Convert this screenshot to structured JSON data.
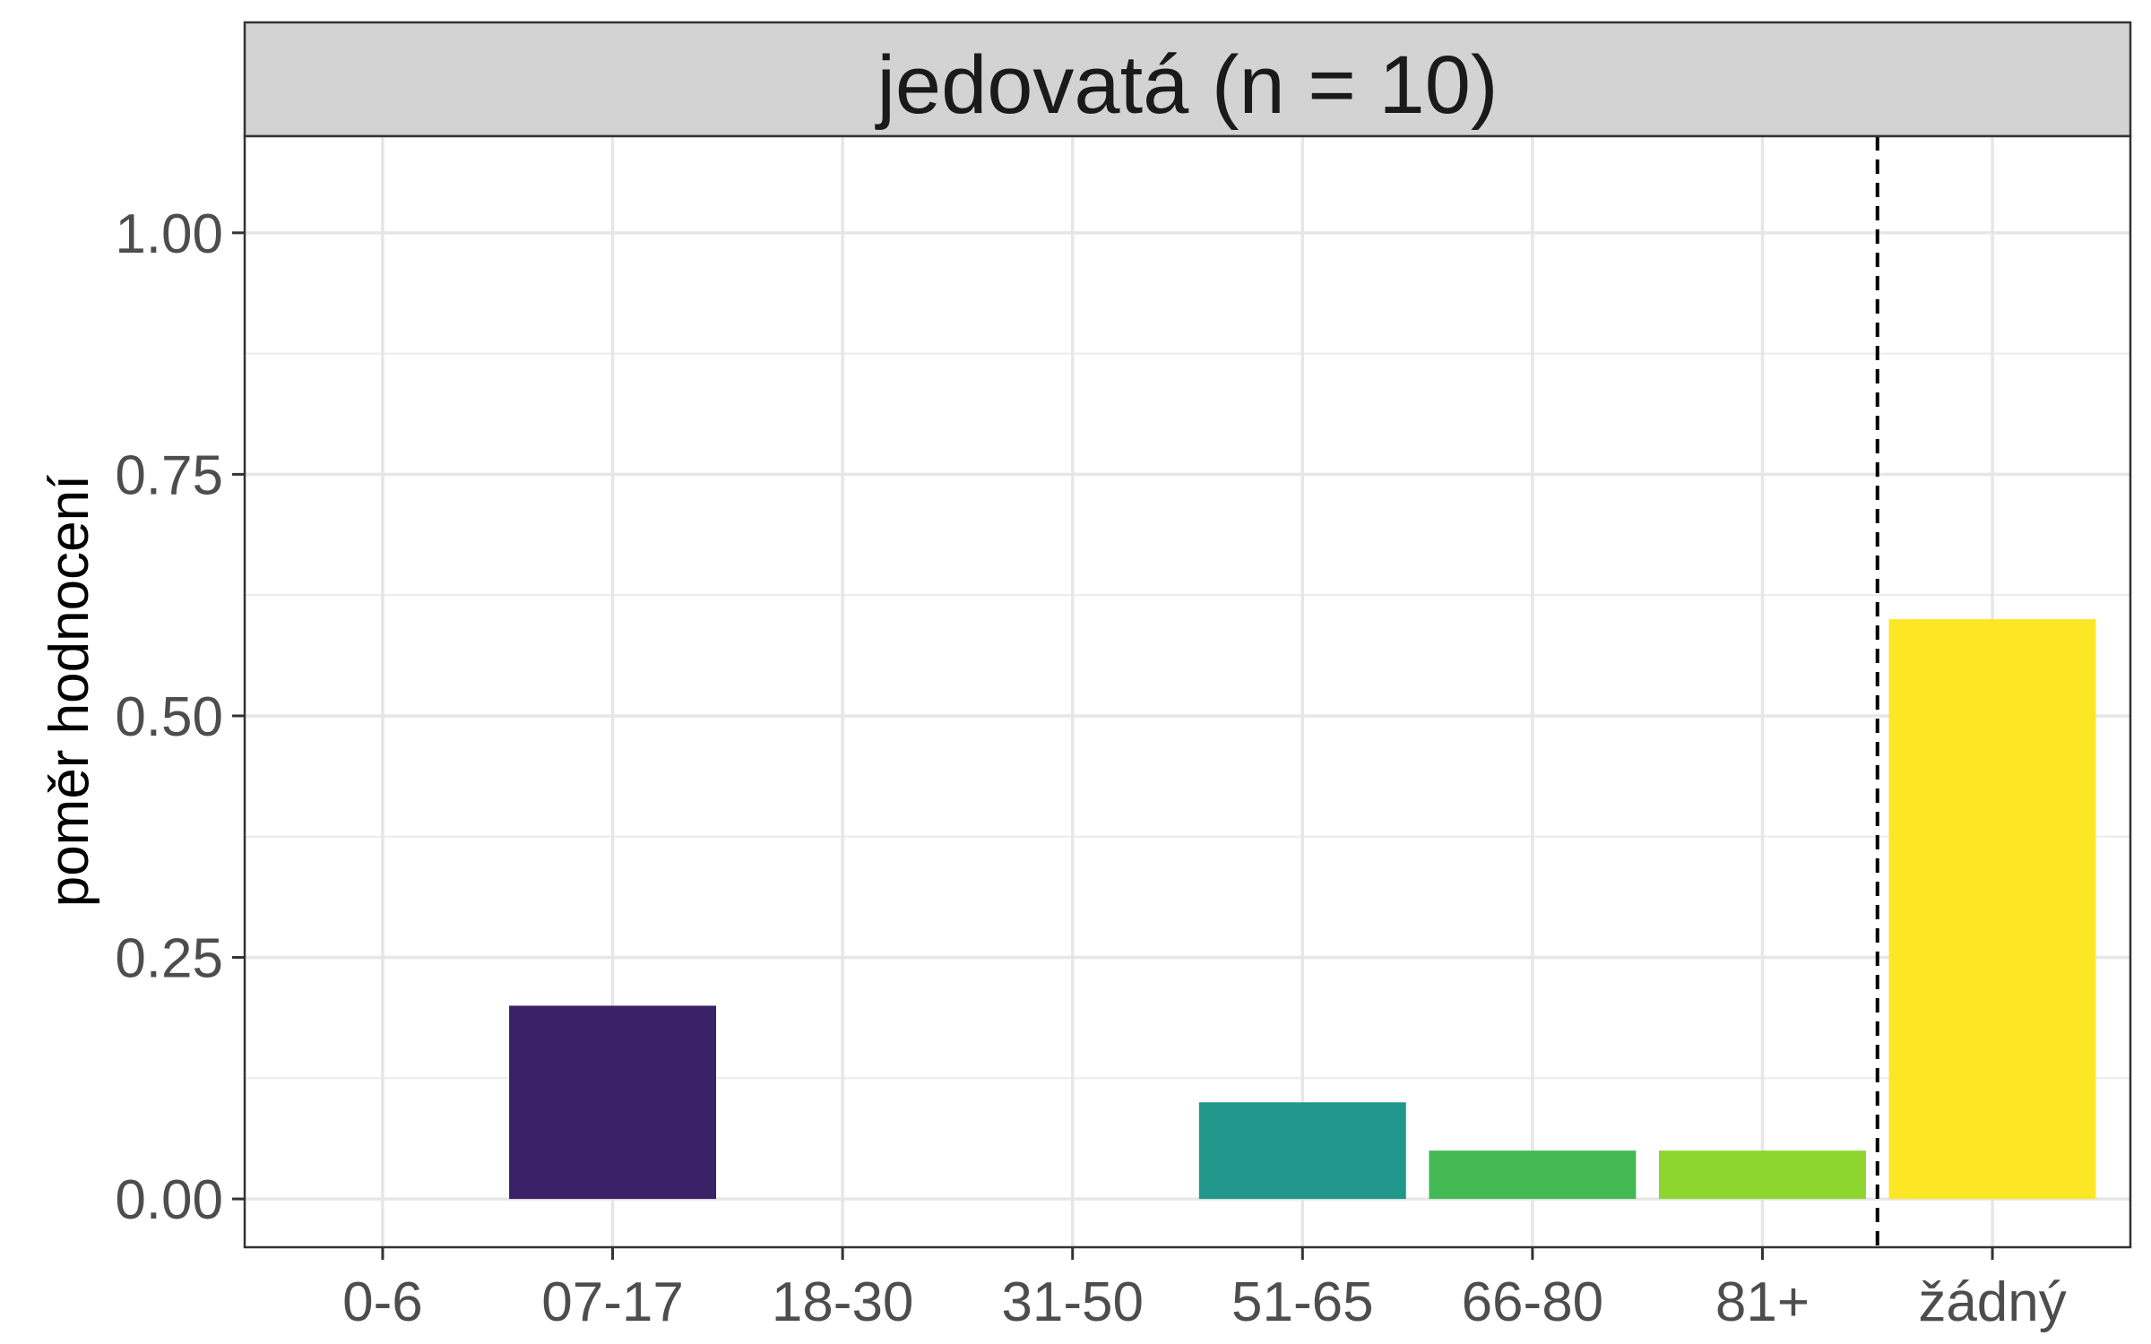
{
  "chart_data": {
    "type": "bar",
    "facet_title": "jedovatá (n = 10)",
    "xlabel": "",
    "ylabel": "poměr hodnocení",
    "categories": [
      "0-6",
      "07-17",
      "18-30",
      "31-50",
      "51-65",
      "66-80",
      "81+",
      "žádný"
    ],
    "values": [
      0,
      0.2,
      0,
      0,
      0.1,
      0.05,
      0.05,
      0.6
    ],
    "colors": [
      "#440154",
      "#3a2168",
      "#31688e",
      "#2a788e",
      "#21968a",
      "#43b954",
      "#8fd530",
      "#fde725"
    ],
    "ylim": [
      -0.05,
      1.1
    ],
    "yticks": [
      "0.00",
      "0.25",
      "0.50",
      "0.75",
      "1.00"
    ],
    "ytick_values": [
      0,
      0.25,
      0.5,
      0.75,
      1.0
    ],
    "reference_line": {
      "style": "dashed",
      "between": [
        "81+",
        "žádný"
      ]
    },
    "grid": true,
    "legend": "none"
  }
}
